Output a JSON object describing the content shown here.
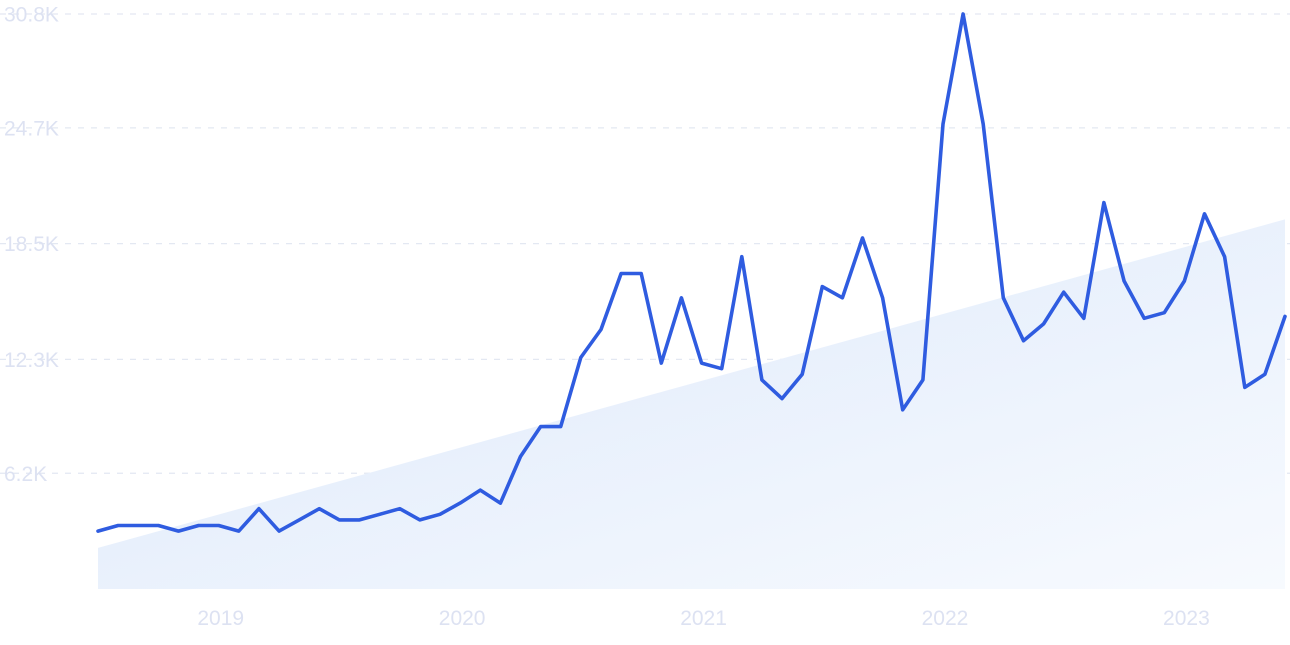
{
  "chart_data": {
    "type": "line",
    "y_ticks": [
      "6.2K",
      "12.3K",
      "18.5K",
      "24.7K",
      "30.8K"
    ],
    "y_tick_values": [
      6200,
      12300,
      18500,
      24700,
      30800
    ],
    "ylim": [
      0,
      30800
    ],
    "x_ticks": [
      "2019",
      "2020",
      "2021",
      "2022",
      "2023"
    ],
    "x_tick_dates": [
      "2019-01",
      "2020-01",
      "2021-01",
      "2022-01",
      "2023-01"
    ],
    "x_range": [
      "2018-07",
      "2023-06"
    ],
    "grid": true,
    "series": [
      {
        "color": "#2f5ce0",
        "x": [
          "2018-07",
          "2018-08",
          "2018-09",
          "2018-10",
          "2018-11",
          "2018-12",
          "2019-01",
          "2019-02",
          "2019-03",
          "2019-04",
          "2019-05",
          "2019-06",
          "2019-07",
          "2019-08",
          "2019-09",
          "2019-10",
          "2019-11",
          "2019-12",
          "2020-01",
          "2020-02",
          "2020-03",
          "2020-04",
          "2020-05",
          "2020-06",
          "2020-07",
          "2020-08",
          "2020-09",
          "2020-10",
          "2020-11",
          "2020-12",
          "2021-01",
          "2021-02",
          "2021-03",
          "2021-04",
          "2021-05",
          "2021-06",
          "2021-07",
          "2021-08",
          "2021-09",
          "2021-10",
          "2021-11",
          "2021-12",
          "2022-01",
          "2022-02",
          "2022-03",
          "2022-04",
          "2022-05",
          "2022-06",
          "2022-07",
          "2022-08",
          "2022-09",
          "2022-10",
          "2022-11",
          "2022-12",
          "2023-01",
          "2023-02",
          "2023-03",
          "2023-04",
          "2023-05",
          "2023-06"
        ],
        "values": [
          3100,
          3400,
          3400,
          3400,
          3100,
          3400,
          3400,
          3100,
          4300,
          3100,
          3700,
          4300,
          3700,
          3700,
          4000,
          4300,
          3700,
          4000,
          4600,
          5300,
          4600,
          7100,
          8700,
          8700,
          12400,
          13900,
          16900,
          16900,
          12100,
          15600,
          12100,
          11800,
          17800,
          11200,
          10200,
          11500,
          16200,
          15600,
          18800,
          15600,
          9600,
          11200,
          24900,
          30800,
          24900,
          15600,
          13300,
          14200,
          15900,
          14500,
          20700,
          16500,
          14500,
          14800,
          16500,
          20100,
          17800,
          10800,
          11500,
          14600
        ]
      }
    ],
    "trend": {
      "color": "#dbe8fb",
      "start_value": 2200,
      "end_value": 19800
    }
  }
}
